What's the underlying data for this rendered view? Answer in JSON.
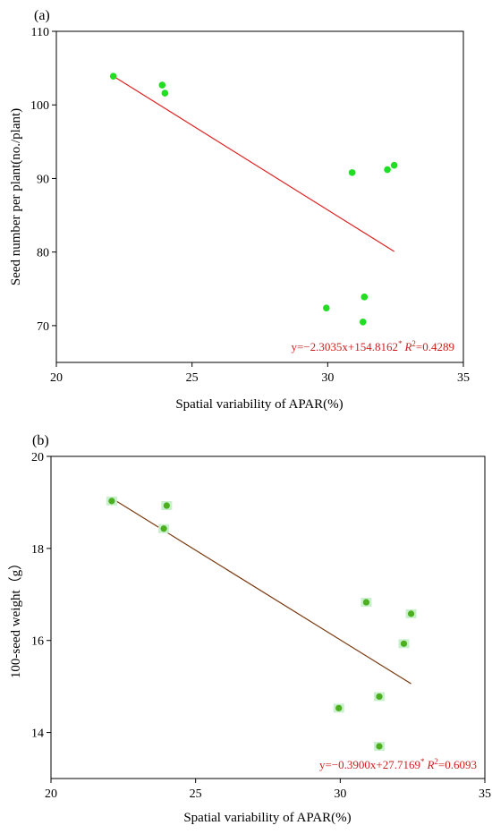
{
  "chart_data": [
    {
      "type": "scatter",
      "panel_label": "(a)",
      "xlabel": "Spatial variability of APAR(%)",
      "ylabel": "Seed number per plant(no./plant)",
      "xlim": [
        20,
        35
      ],
      "ylim": [
        65,
        110
      ],
      "xticks": [
        20,
        25,
        30,
        35
      ],
      "yticks": [
        70,
        80,
        90,
        100,
        110
      ],
      "series": [
        {
          "x": [
            22.1,
            23.9,
            24.0,
            30.9,
            32.2,
            32.45,
            29.95,
            31.35,
            31.3
          ],
          "y": [
            103.9,
            102.7,
            101.6,
            90.8,
            91.2,
            91.8,
            72.4,
            73.9,
            70.5
          ]
        }
      ],
      "fit_line": {
        "x": [
          22.1,
          32.45
        ],
        "y": [
          103.91,
          80.08
        ]
      },
      "equation": {
        "main": "y=−2.3035x+154.8162",
        "sup": "*",
        "r2_label": "R",
        "r2_sup": "2",
        "r2_value": "=0.4289"
      },
      "point_color": "#22dd22",
      "line_color": "#e02020",
      "equation_color": "#cc2020",
      "grid": false,
      "legend": "none"
    },
    {
      "type": "scatter",
      "panel_label": "(b)",
      "xlabel": "Spatial variability of APAR(%)",
      "ylabel": "100-seed weight（g）",
      "xlim": [
        20,
        35
      ],
      "ylim": [
        13,
        20
      ],
      "xticks": [
        20,
        25,
        30,
        35
      ],
      "yticks": [
        14,
        16,
        18,
        20
      ],
      "series": [
        {
          "x": [
            22.1,
            23.9,
            24.0,
            30.9,
            32.45,
            32.2,
            29.95,
            31.35,
            31.35
          ],
          "y": [
            19.03,
            18.43,
            18.93,
            16.83,
            16.58,
            15.93,
            14.53,
            14.78,
            13.7
          ]
        }
      ],
      "fit_line": {
        "x": [
          22.1,
          32.45
        ],
        "y": [
          19.09,
          15.06
        ]
      },
      "equation": {
        "main": "y=−0.3900x+27.7169",
        "sup": "*",
        "r2_label": "R",
        "r2_sup": "2",
        "r2_value": "=0.6093"
      },
      "point_color": "#4caf1e",
      "point_halo_color": "#c8f0cc",
      "line_color": "#7a3a10",
      "equation_color": "#cc2020",
      "grid": false,
      "legend": "none"
    }
  ]
}
